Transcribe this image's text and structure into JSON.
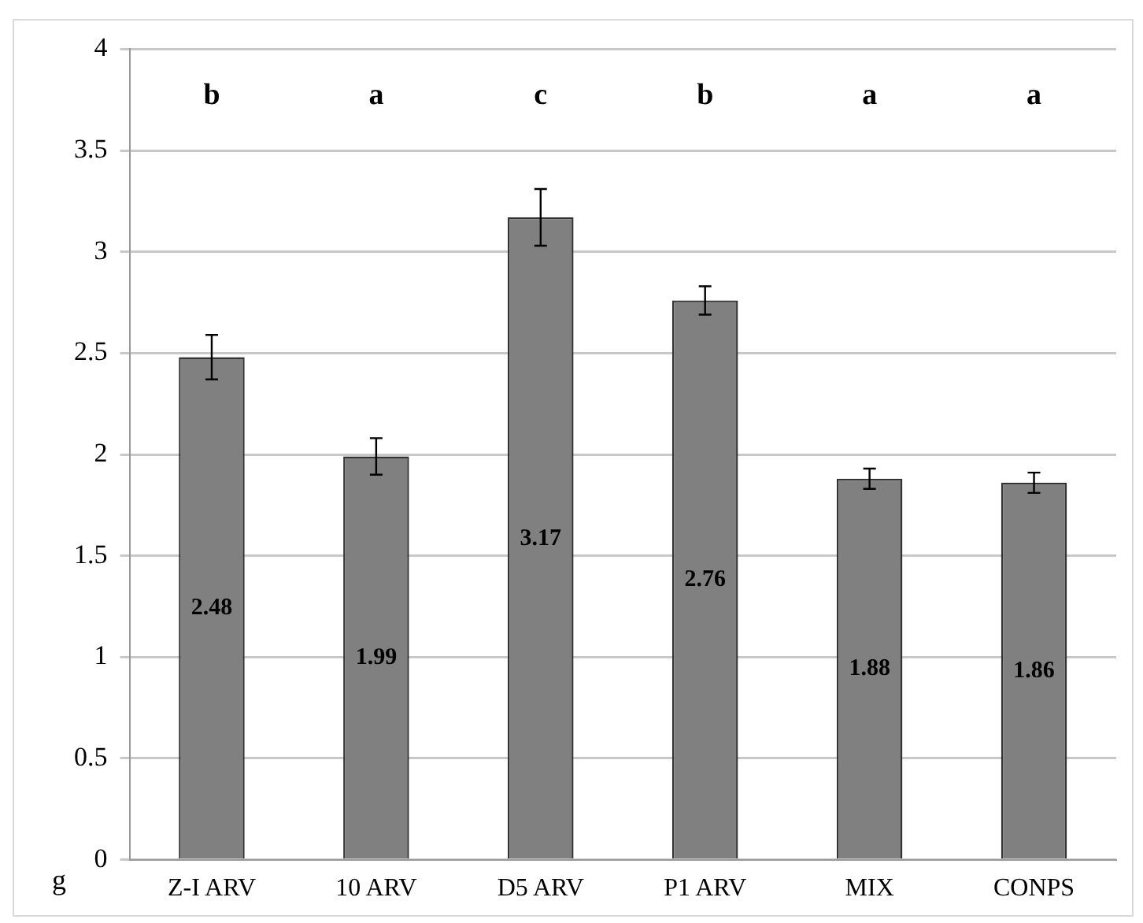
{
  "chart_data": {
    "type": "bar",
    "ylabel": "g",
    "categories": [
      "Z-I ARV",
      "10 ARV",
      "D5 ARV",
      "P1 ARV",
      "MIX",
      "CONPS"
    ],
    "values": [
      2.48,
      1.99,
      3.17,
      2.76,
      1.88,
      1.86
    ],
    "errors": [
      0.11,
      0.09,
      0.14,
      0.07,
      0.05,
      0.05
    ],
    "color": "#808080",
    "ylim": [
      0,
      4
    ],
    "yticks": [
      0,
      0.5,
      1,
      1.5,
      2,
      2.5,
      3,
      3.5,
      4
    ],
    "grid": "y",
    "legend": false,
    "data_labels": true,
    "annotations": [
      "b",
      "a",
      "c",
      "b",
      "a",
      "a"
    ]
  }
}
